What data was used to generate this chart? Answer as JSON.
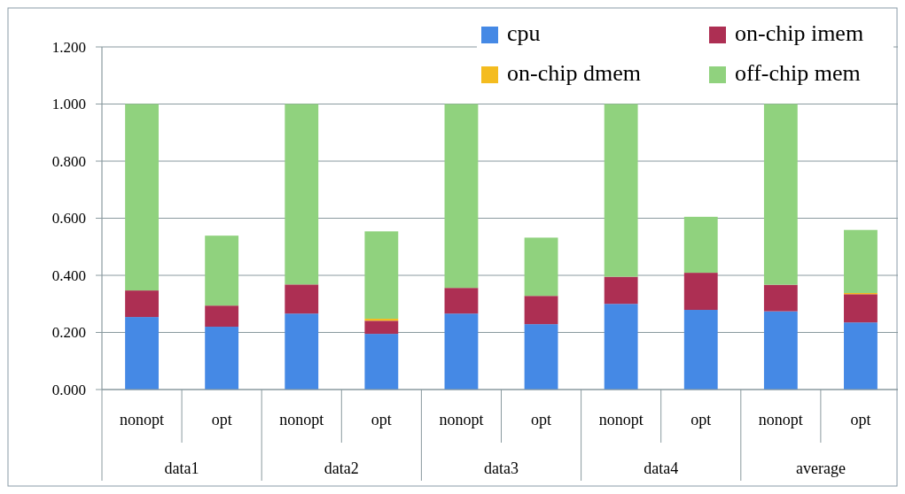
{
  "chart_data": {
    "type": "bar",
    "stacked": true,
    "categories": [
      "nonopt",
      "opt",
      "nonopt",
      "opt",
      "nonopt",
      "opt",
      "nonopt",
      "opt",
      "nonopt",
      "opt"
    ],
    "annotations": [
      "data1",
      "data2",
      "data3",
      "data4",
      "average"
    ],
    "series": [
      {
        "name": "cpu",
        "color": "#4589e5",
        "values": [
          0.254,
          0.22,
          0.266,
          0.195,
          0.266,
          0.229,
          0.3,
          0.279,
          0.274,
          0.235
        ]
      },
      {
        "name": "on-chip imem",
        "color": "#ad2f53",
        "values": [
          0.093,
          0.074,
          0.102,
          0.046,
          0.09,
          0.099,
          0.095,
          0.13,
          0.093,
          0.099
        ]
      },
      {
        "name": "on-chip dmem",
        "color": "#f4bc1f",
        "values": [
          0,
          0,
          0,
          0.007,
          0,
          0,
          0,
          0,
          0,
          0.004
        ]
      },
      {
        "name": "off-chip mem",
        "color": "#90d27e",
        "values": [
          0.653,
          0.245,
          0.632,
          0.306,
          0.644,
          0.204,
          0.605,
          0.196,
          0.633,
          0.221
        ]
      }
    ],
    "ylim": [
      0,
      1.2
    ],
    "yticks": [
      {
        "value": 0,
        "label": "0.000"
      },
      {
        "value": 0.2,
        "label": "0.200"
      },
      {
        "value": 0.4,
        "label": "0.400"
      },
      {
        "value": 0.6,
        "label": "0.600"
      },
      {
        "value": 0.8,
        "label": "0.800"
      },
      {
        "value": 1,
        "label": "1.000"
      },
      {
        "value": 1.2,
        "label": "1.200"
      }
    ],
    "grid": "y",
    "legend": "top right"
  }
}
